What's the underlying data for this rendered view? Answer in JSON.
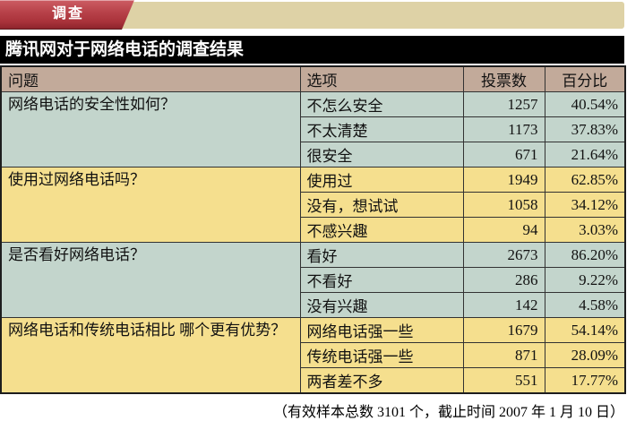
{
  "banner": {
    "tab_label": "调查"
  },
  "colors": {
    "tab_red": "#b8424a",
    "tab_red_dark": "#8b232b",
    "strip_tan": "#ded2a6",
    "title_bar_bg": "#000000",
    "header_bg": "#c2aa9a",
    "group_green": "#c3d5cc",
    "group_yellow": "#f5df8e"
  },
  "chart_data": {
    "type": "table",
    "title": "腾讯网对于网络电话的调查结果",
    "columns": [
      "问题",
      "选项",
      "投票数",
      "百分比"
    ],
    "groups": [
      {
        "question": "网络电话的安全性如何？",
        "theme": "green",
        "rows": [
          {
            "option": "不怎么安全",
            "votes": "1257",
            "percent": "40.54%"
          },
          {
            "option": "不太清楚",
            "votes": "1173",
            "percent": "37.83%"
          },
          {
            "option": "很安全",
            "votes": "671",
            "percent": "21.64%"
          }
        ]
      },
      {
        "question": "使用过网络电话吗？",
        "theme": "yellow",
        "rows": [
          {
            "option": "使用过",
            "votes": "1949",
            "percent": "62.85%"
          },
          {
            "option": "没有，想试试",
            "votes": "1058",
            "percent": "34.12%"
          },
          {
            "option": "不感兴趣",
            "votes": "94",
            "percent": "3.03%"
          }
        ]
      },
      {
        "question": "是否看好网络电话？",
        "theme": "green",
        "rows": [
          {
            "option": "看好",
            "votes": "2673",
            "percent": "86.20%"
          },
          {
            "option": "不看好",
            "votes": "286",
            "percent": "9.22%"
          },
          {
            "option": "没有兴趣",
            "votes": "142",
            "percent": "4.58%"
          }
        ]
      },
      {
        "question": "网络电话和传统电话相比\n哪个更有优势？",
        "theme": "yellow",
        "rows": [
          {
            "option": "网络电话强一些",
            "votes": "1679",
            "percent": "54.14%"
          },
          {
            "option": "传统电话强一些",
            "votes": "871",
            "percent": "28.09%"
          },
          {
            "option": "两者差不多",
            "votes": "551",
            "percent": "17.77%"
          }
        ]
      }
    ],
    "note": "（有效样本总数 3101 个，截止时间 2007 年 1 月 10 日）"
  }
}
